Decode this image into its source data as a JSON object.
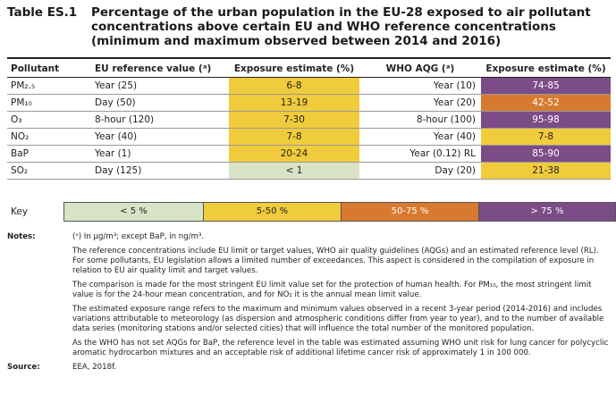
{
  "table_id": "Table ES.1",
  "title": "Percentage of the urban population in the EU-28 exposed to air pollutant concentrations above certain EU and WHO reference concentrations (minimum and maximum observed between 2014 and 2016)",
  "headers": {
    "pollutant": "Pollutant",
    "eu_ref": "EU reference value (ᵃ)",
    "eu_exp": "Exposure estimate (%)",
    "who": "WHO AQG (ᵃ)",
    "who_exp": "Exposure estimate (%)"
  },
  "rows": [
    {
      "pollutant": "PM₂.₅",
      "eu_ref": "Year (25)",
      "eu_exp": "6-8",
      "eu_color": "#f0cb3c",
      "who": "Year (10)",
      "who_exp": "74-85",
      "who_color": "#7b4c86",
      "who_text": "#ffffff"
    },
    {
      "pollutant": "PM₁₀",
      "eu_ref": "Day (50)",
      "eu_exp": "13-19",
      "eu_color": "#f0cb3c",
      "who": "Year (20)",
      "who_exp": "42-52",
      "who_color": "#d77a30",
      "who_text": "#ffffff"
    },
    {
      "pollutant": "O₃",
      "eu_ref": "8-hour (120)",
      "eu_exp": "7-30",
      "eu_color": "#f0cb3c",
      "who": "8-hour (100)",
      "who_exp": "95-98",
      "who_color": "#7b4c86",
      "who_text": "#ffffff"
    },
    {
      "pollutant": "NO₂",
      "eu_ref": "Year (40)",
      "eu_exp": "7-8",
      "eu_color": "#f0cb3c",
      "who": "Year (40)",
      "who_exp": "7-8",
      "who_color": "#f0cb3c",
      "who_text": "#222222"
    },
    {
      "pollutant": "BaP",
      "eu_ref": "Year (1)",
      "eu_exp": "20-24",
      "eu_color": "#f0cb3c",
      "who": "Year (0.12) RL",
      "who_exp": "85-90",
      "who_color": "#7b4c86",
      "who_text": "#ffffff"
    },
    {
      "pollutant": "SO₂",
      "eu_ref": "Day (125)",
      "eu_exp": "< 1",
      "eu_color": "#d9e3c5",
      "who": "Day (20)",
      "who_exp": "21-38",
      "who_color": "#f0cb3c",
      "who_text": "#222222"
    }
  ],
  "key": {
    "label": "Key",
    "items": [
      {
        "label": "< 5 %",
        "color": "#d9e3c5",
        "text": "#222222"
      },
      {
        "label": "5-50 %",
        "color": "#f0cb3c",
        "text": "#222222"
      },
      {
        "label": "50-75 %",
        "color": "#d77a30",
        "text": "#ffffff"
      },
      {
        "label": "> 75 %",
        "color": "#7b4c86",
        "text": "#ffffff"
      }
    ]
  },
  "notes_label": "Notes:",
  "notes": [
    "(ᵃ) In μg/m³; except BaP, in ng/m³.",
    "The reference concentrations include EU limit or target values, WHO air quality guidelines (AQGs) and an estimated reference level (RL). For some pollutants, EU legislation allows a limited number of exceedances. This aspect is considered in the compilation of exposure in relation to EU air quality limit and target values.",
    "The comparison is made for the most stringent EU limit value set for the protection of human health. For PM₁₀, the most stringent limit value is for the 24-hour mean concentration, and for NO₂ it is the annual mean limit value.",
    "The estimated exposure range refers to the maximum and minimum values observed in a recent 3-year period (2014-2016) and includes variations attributable to meteorology (as dispersion and atmospheric conditions differ from year to year), and to the number of available data series (monitoring stations and/or selected cities) that will influence the total number of the monitored population.",
    "As the WHO has not set AQGs for BaP, the reference level in the table was estimated assuming WHO unit risk for lung cancer for polycyclic aromatic hydrocarbon mixtures and an acceptable risk of additional lifetime cancer risk of approximately 1 in 100 000."
  ],
  "source_label": "Source:",
  "source": "EEA, 2018f."
}
